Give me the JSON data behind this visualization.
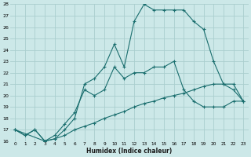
{
  "xlabel": "Humidex (Indice chaleur)",
  "bg_color": "#cce8e8",
  "grid_color": "#aacece",
  "line_color": "#1a6e6e",
  "xlim": [
    -0.5,
    23.5
  ],
  "ylim": [
    16,
    28
  ],
  "xticks": [
    0,
    1,
    2,
    3,
    4,
    5,
    6,
    7,
    8,
    9,
    10,
    11,
    12,
    13,
    14,
    15,
    16,
    17,
    18,
    19,
    20,
    21,
    22,
    23
  ],
  "yticks": [
    16,
    17,
    18,
    19,
    20,
    21,
    22,
    23,
    24,
    25,
    26,
    27,
    28
  ],
  "line1_x": [
    0,
    1,
    2,
    3,
    4,
    5,
    6,
    7,
    8,
    9,
    10,
    11,
    12,
    13,
    14,
    15,
    16,
    17,
    18,
    19,
    20,
    21,
    22,
    23
  ],
  "line1_y": [
    17.0,
    16.5,
    17.0,
    16.0,
    16.2,
    16.5,
    17.0,
    17.3,
    17.6,
    18.0,
    18.3,
    18.6,
    19.0,
    19.3,
    19.5,
    19.8,
    20.0,
    20.2,
    20.5,
    20.8,
    21.0,
    21.0,
    21.0,
    19.5
  ],
  "line2_x": [
    0,
    1,
    2,
    3,
    4,
    5,
    6,
    7,
    8,
    9,
    10,
    11,
    12,
    13,
    14,
    15,
    16,
    17,
    18,
    19,
    20,
    21,
    22,
    23
  ],
  "line2_y": [
    17.0,
    16.5,
    17.0,
    16.0,
    16.5,
    17.5,
    18.5,
    20.5,
    20.0,
    20.5,
    22.5,
    21.5,
    22.0,
    22.0,
    22.5,
    22.5,
    23.0,
    20.5,
    19.5,
    19.0,
    19.0,
    19.0,
    19.5,
    19.5
  ],
  "line3_x": [
    0,
    3,
    4,
    5,
    6,
    7,
    8,
    9,
    10,
    11,
    12,
    13,
    14,
    15,
    16,
    17,
    18,
    19,
    20,
    21,
    22,
    23
  ],
  "line3_y": [
    17.0,
    16.0,
    16.2,
    17.0,
    18.0,
    21.0,
    21.5,
    22.5,
    24.5,
    22.5,
    26.5,
    28.0,
    27.5,
    27.5,
    27.5,
    27.5,
    26.5,
    25.8,
    23.0,
    21.0,
    20.5,
    19.5
  ]
}
